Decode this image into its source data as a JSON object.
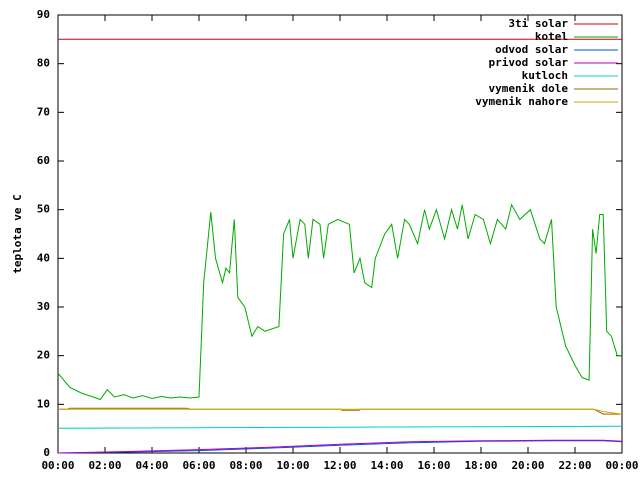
{
  "chart_data": {
    "type": "line",
    "ylabel": "teplota ve C",
    "xlim": [
      0,
      24
    ],
    "xticks": [
      {
        "value": 0,
        "label": "00:00"
      },
      {
        "value": 2,
        "label": "02:00"
      },
      {
        "value": 4,
        "label": "04:00"
      },
      {
        "value": 6,
        "label": "06:00"
      },
      {
        "value": 8,
        "label": "08:00"
      },
      {
        "value": 10,
        "label": "10:00"
      },
      {
        "value": 12,
        "label": "12:00"
      },
      {
        "value": 14,
        "label": "14:00"
      },
      {
        "value": 16,
        "label": "16:00"
      },
      {
        "value": 18,
        "label": "18:00"
      },
      {
        "value": 20,
        "label": "20:00"
      },
      {
        "value": 22,
        "label": "22:00"
      },
      {
        "value": 24,
        "label": "00:00"
      }
    ],
    "ylim": [
      0,
      90
    ],
    "yticks": [
      0,
      10,
      20,
      30,
      40,
      50,
      60,
      70,
      80,
      90
    ],
    "legend": "top-right",
    "series": [
      {
        "name": "3ti solar",
        "color": "#cc0000",
        "x": [
          0,
          24
        ],
        "values": [
          85,
          85
        ]
      },
      {
        "name": "kotel",
        "color": "#00aa00",
        "x": [
          0,
          0.5,
          1,
          1.5,
          1.8,
          2.1,
          2.4,
          2.8,
          3.2,
          3.6,
          4,
          4.4,
          4.8,
          5.2,
          5.6,
          6,
          6.2,
          6.5,
          6.7,
          7,
          7.15,
          7.3,
          7.5,
          7.65,
          7.95,
          8.25,
          8.5,
          8.8,
          9.4,
          9.6,
          9.85,
          10,
          10.3,
          10.5,
          10.65,
          10.85,
          11.15,
          11.3,
          11.5,
          11.9,
          12.4,
          12.6,
          12.85,
          13.05,
          13.35,
          13.5,
          13.9,
          14.2,
          14.45,
          14.75,
          14.95,
          15.3,
          15.6,
          15.8,
          16.1,
          16.45,
          16.75,
          17,
          17.2,
          17.45,
          17.75,
          18.1,
          18.4,
          18.7,
          19.05,
          19.3,
          19.65,
          20.1,
          20.5,
          20.7,
          21,
          21.2,
          21.6,
          22,
          22.3,
          22.6,
          22.75,
          22.9,
          23.05,
          23.2,
          23.35,
          23.55,
          23.8,
          24
        ],
        "values": [
          16.4,
          13.5,
          12.3,
          11.5,
          11,
          13,
          11.5,
          12,
          11.3,
          11.8,
          11.2,
          11.6,
          11.3,
          11.5,
          11.3,
          11.5,
          35,
          49.5,
          40,
          35,
          38,
          37,
          48,
          32,
          30,
          24,
          26,
          25,
          26,
          45,
          48,
          40,
          48,
          47,
          40,
          48,
          47,
          40,
          47,
          48,
          47,
          37,
          40,
          35,
          34,
          40,
          45,
          47,
          40,
          48,
          47,
          43,
          50,
          46,
          50,
          44,
          50,
          46,
          51,
          44,
          49,
          48,
          43,
          48,
          46,
          51,
          48,
          50,
          44,
          43,
          48,
          30,
          22,
          18,
          15.5,
          15,
          46,
          41,
          49,
          49,
          25,
          24,
          20,
          20
        ]
      },
      {
        "name": "odvod solar",
        "color": "#0055dd",
        "x": [
          0,
          3,
          6,
          9,
          12,
          15,
          18,
          21,
          23.2,
          24
        ],
        "values": [
          0,
          0.2,
          0.5,
          1,
          1.6,
          2.1,
          2.4,
          2.5,
          2.5,
          2.3
        ]
      },
      {
        "name": "privod solar",
        "color": "#bb00bb",
        "x": [
          0,
          3,
          6,
          9,
          12,
          15,
          18,
          21,
          23.2,
          24
        ],
        "values": [
          0,
          0.3,
          0.7,
          1.2,
          1.8,
          2.3,
          2.5,
          2.6,
          2.6,
          2.4
        ]
      },
      {
        "name": "kutloch",
        "color": "#00cccc",
        "x": [
          0,
          12,
          24
        ],
        "values": [
          5.1,
          5.3,
          5.5
        ]
      },
      {
        "name": "vymenik dole",
        "color": "#996600",
        "x": [
          0,
          0.4,
          0.5,
          5.5,
          5.6,
          12,
          12.1,
          12.8,
          12.9,
          22.8,
          23.2,
          24
        ],
        "values": [
          9,
          9,
          9.2,
          9.2,
          9,
          9,
          8.8,
          8.8,
          9,
          9,
          8,
          8
        ]
      },
      {
        "name": "vymenik nahore",
        "color": "#ccaa00",
        "x": [
          0,
          0.4,
          1,
          22.8,
          23.2,
          24
        ],
        "values": [
          9,
          9,
          9,
          9,
          8.5,
          8
        ]
      }
    ]
  }
}
